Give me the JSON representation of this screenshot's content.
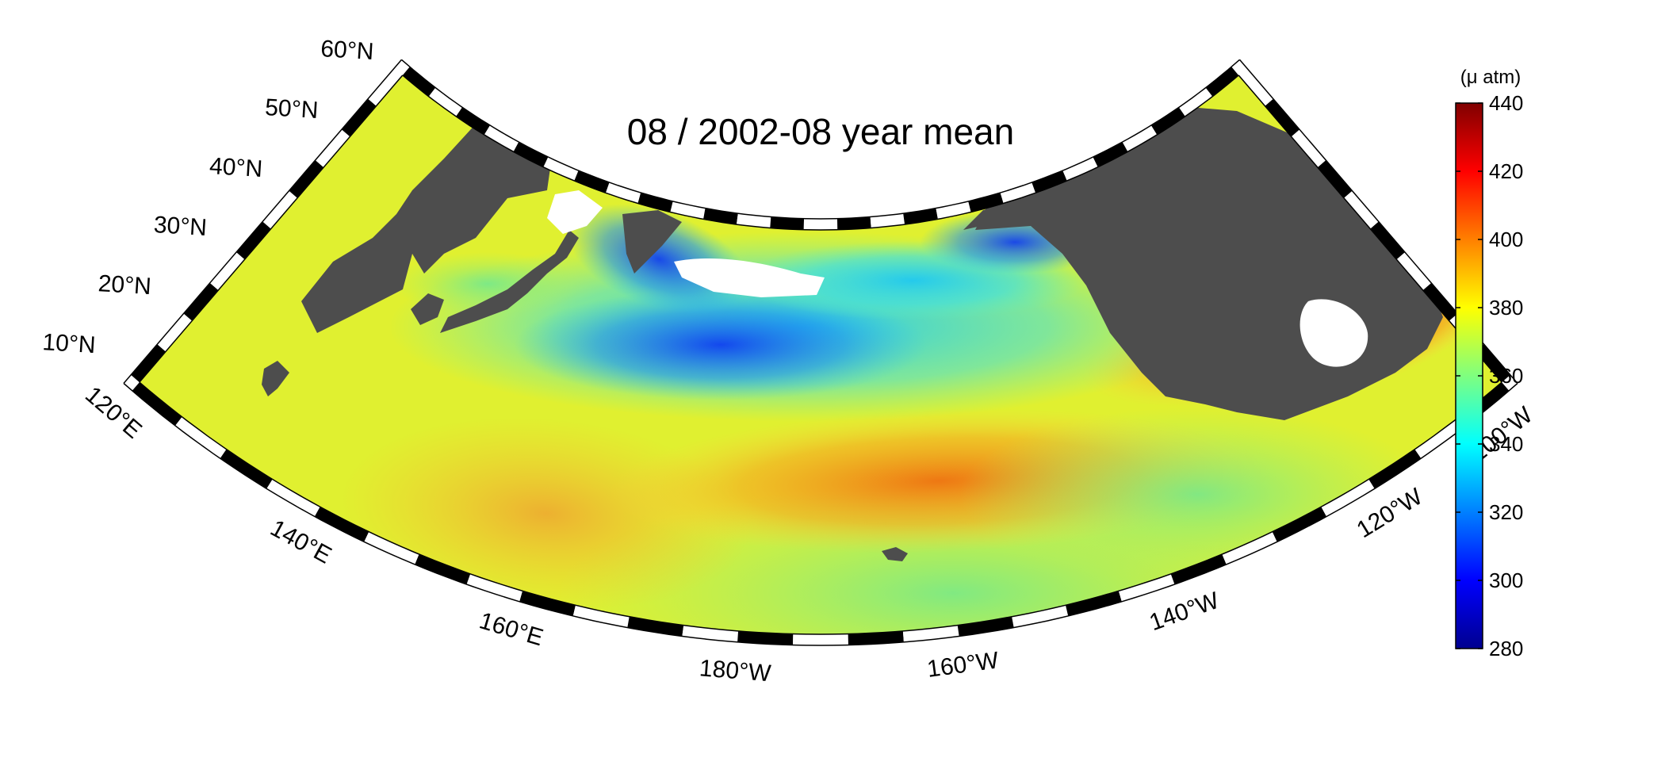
{
  "map": {
    "title": "08 / 2002-08 year mean",
    "projection": "conic",
    "lat_range": [
      10,
      60
    ],
    "lon_range": [
      120,
      255
    ],
    "lat_labels": [
      "10°N",
      "20°N",
      "30°N",
      "40°N",
      "50°N",
      "60°N"
    ],
    "lat_values": [
      10,
      20,
      30,
      40,
      50,
      60
    ],
    "lon_labels": [
      "120°E",
      "140°E",
      "160°E",
      "180°W",
      "160°W",
      "140°W",
      "120°W",
      "100°W"
    ],
    "lon_values": [
      120,
      140,
      160,
      180,
      200,
      220,
      240,
      260
    ],
    "land_color": "#4d4d4d",
    "nodata_color": "#ffffff",
    "features": [
      {
        "name": "Asia",
        "type": "land"
      },
      {
        "name": "Japan",
        "type": "land"
      },
      {
        "name": "Kamchatka",
        "type": "land"
      },
      {
        "name": "Alaska",
        "type": "land"
      },
      {
        "name": "North America",
        "type": "land"
      },
      {
        "name": "Hawaii",
        "type": "land"
      },
      {
        "name": "Philippines",
        "type": "land"
      }
    ]
  },
  "colorbar": {
    "unit": "(μ atm)",
    "min": 280,
    "max": 440,
    "ticks": [
      "280",
      "300",
      "320",
      "340",
      "360",
      "380",
      "400",
      "420",
      "440"
    ],
    "colormap": "jet"
  }
}
